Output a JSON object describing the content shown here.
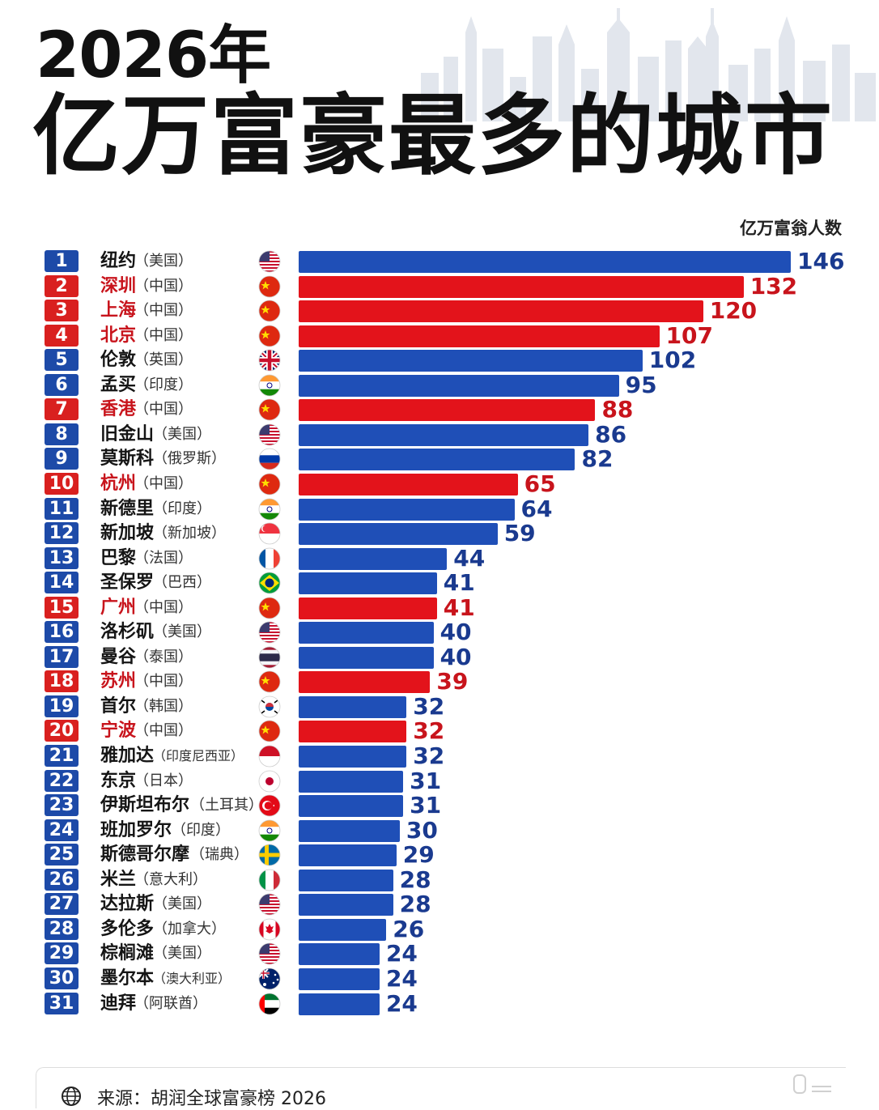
{
  "title": {
    "year": "2026年",
    "main": "亿万富豪最多的城市"
  },
  "unit_label": "亿万富翁人数",
  "source": "来源：胡润全球富豪榜 2026",
  "colors": {
    "blue_bar": "#1f4fb7",
    "blue_rank": "#1d4aa8",
    "blue_text": "#1a3a8f",
    "red_bar": "#e3131b",
    "red_rank": "#d9201f",
    "red_text": "#c8141c",
    "black_text": "#151515",
    "skyline": "#dfe3ea"
  },
  "chart_data": {
    "type": "bar",
    "orientation": "horizontal",
    "title": "亿万富豪最多的城市",
    "xlabel": "亿万富翁人数",
    "xlim": [
      0,
      146
    ],
    "grid": false,
    "legend": "none",
    "rows": [
      {
        "rank": "1",
        "city": "纽约",
        "country": "（美国）",
        "flag": "usa-flag-icon",
        "value": 146,
        "highlight": false
      },
      {
        "rank": "2",
        "city": "深圳",
        "country": "（中国）",
        "flag": "china-flag-icon",
        "value": 132,
        "highlight": true
      },
      {
        "rank": "3",
        "city": "上海",
        "country": "（中国）",
        "flag": "china-flag-icon",
        "value": 120,
        "highlight": true
      },
      {
        "rank": "4",
        "city": "北京",
        "country": "（中国）",
        "flag": "china-flag-icon",
        "value": 107,
        "highlight": true
      },
      {
        "rank": "5",
        "city": "伦敦",
        "country": "（英国）",
        "flag": "uk-flag-icon",
        "value": 102,
        "highlight": false
      },
      {
        "rank": "6",
        "city": "孟买",
        "country": "（印度）",
        "flag": "india-flag-icon",
        "value": 95,
        "highlight": false
      },
      {
        "rank": "7",
        "city": "香港",
        "country": "（中国）",
        "flag": "china-flag-icon",
        "value": 88,
        "highlight": true
      },
      {
        "rank": "8",
        "city": "旧金山",
        "country": "（美国）",
        "flag": "usa-flag-icon",
        "value": 86,
        "highlight": false
      },
      {
        "rank": "9",
        "city": "莫斯科",
        "country": "（俄罗斯）",
        "flag": "russia-flag-icon",
        "value": 82,
        "highlight": false
      },
      {
        "rank": "10",
        "city": "杭州",
        "country": "（中国）",
        "flag": "china-flag-icon",
        "value": 65,
        "highlight": true
      },
      {
        "rank": "11",
        "city": "新德里",
        "country": "（印度）",
        "flag": "india-flag-icon",
        "value": 64,
        "highlight": false
      },
      {
        "rank": "12",
        "city": "新加坡",
        "country": "（新加坡）",
        "flag": "singapore-flag-icon",
        "value": 59,
        "highlight": false
      },
      {
        "rank": "13",
        "city": "巴黎",
        "country": "（法国）",
        "flag": "france-flag-icon",
        "value": 44,
        "highlight": false
      },
      {
        "rank": "14",
        "city": "圣保罗",
        "country": "（巴西）",
        "flag": "brazil-flag-icon",
        "value": 41,
        "highlight": false
      },
      {
        "rank": "15",
        "city": "广州",
        "country": "（中国）",
        "flag": "china-flag-icon",
        "value": 41,
        "highlight": true
      },
      {
        "rank": "16",
        "city": "洛杉矶",
        "country": "（美国）",
        "flag": "usa-flag-icon",
        "value": 40,
        "highlight": false
      },
      {
        "rank": "17",
        "city": "曼谷",
        "country": "（泰国）",
        "flag": "thailand-flag-icon",
        "value": 40,
        "highlight": false
      },
      {
        "rank": "18",
        "city": "苏州",
        "country": "（中国）",
        "flag": "china-flag-icon",
        "value": 39,
        "highlight": true
      },
      {
        "rank": "19",
        "city": "首尔",
        "country": "（韩国）",
        "flag": "korea-flag-icon",
        "value": 32,
        "highlight": false
      },
      {
        "rank": "20",
        "city": "宁波",
        "country": "（中国）",
        "flag": "china-flag-icon",
        "value": 32,
        "highlight": true
      },
      {
        "rank": "21",
        "city": "雅加达",
        "country": "（印度尼西亚）",
        "flag": "indonesia-flag-icon",
        "value": 32,
        "highlight": false
      },
      {
        "rank": "22",
        "city": "东京",
        "country": "（日本）",
        "flag": "japan-flag-icon",
        "value": 31,
        "highlight": false
      },
      {
        "rank": "23",
        "city": "伊斯坦布尔",
        "country": "（土耳其）",
        "flag": "turkey-flag-icon",
        "value": 31,
        "highlight": false
      },
      {
        "rank": "24",
        "city": "班加罗尔",
        "country": "（印度）",
        "flag": "india-flag-icon",
        "value": 30,
        "highlight": false
      },
      {
        "rank": "25",
        "city": "斯德哥尔摩",
        "country": "（瑞典）",
        "flag": "sweden-flag-icon",
        "value": 29,
        "highlight": false
      },
      {
        "rank": "26",
        "city": "米兰",
        "country": "（意大利）",
        "flag": "italy-flag-icon",
        "value": 28,
        "highlight": false
      },
      {
        "rank": "27",
        "city": "达拉斯",
        "country": "（美国）",
        "flag": "usa-flag-icon",
        "value": 28,
        "highlight": false
      },
      {
        "rank": "28",
        "city": "多伦多",
        "country": "（加拿大）",
        "flag": "canada-flag-icon",
        "value": 26,
        "highlight": false
      },
      {
        "rank": "29",
        "city": "棕榈滩",
        "country": "（美国）",
        "flag": "usa-flag-icon",
        "value": 24,
        "highlight": false
      },
      {
        "rank": "30",
        "city": "墨尔本",
        "country": "（澳大利亚）",
        "flag": "australia-flag-icon",
        "value": 24,
        "highlight": false
      },
      {
        "rank": "31",
        "city": "迪拜",
        "country": "（阿联酋）",
        "flag": "uae-flag-icon",
        "value": 24,
        "highlight": false
      }
    ]
  }
}
